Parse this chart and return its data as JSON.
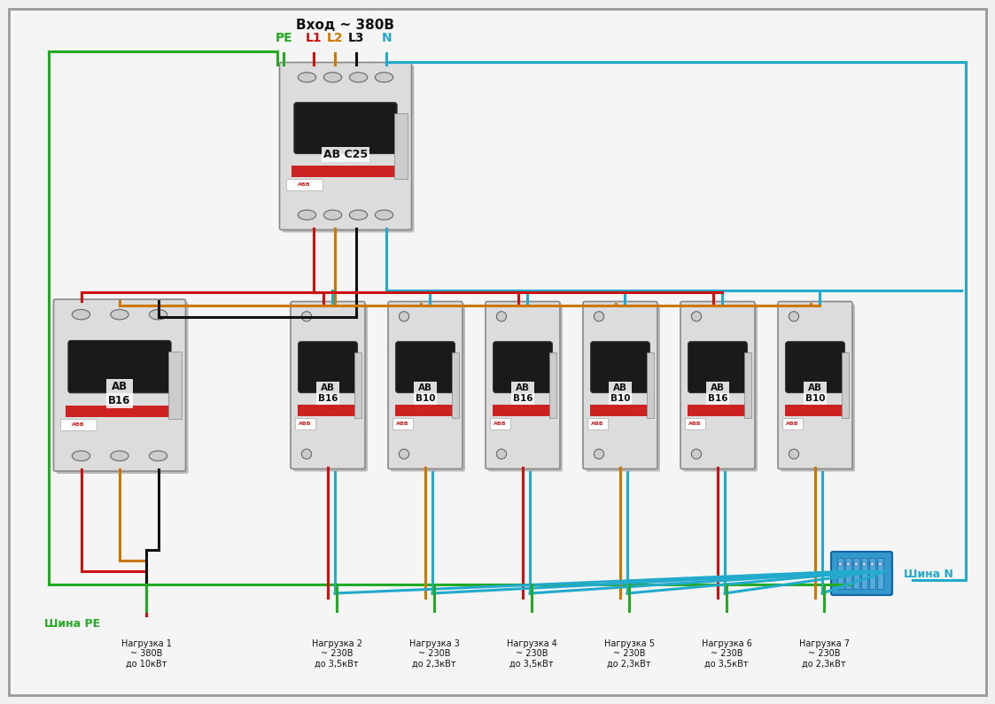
{
  "title": "Вход ~ 380В",
  "bg_color": "#f0f0f0",
  "inner_bg": "#f5f5f5",
  "border_color": "#999999",
  "colors": {
    "green": "#22aa22",
    "red": "#cc1111",
    "orange": "#cc7700",
    "black": "#111111",
    "blue": "#22aacc",
    "breaker_body": "#e0e0e0",
    "breaker_dark": "#222222",
    "abb_red": "#cc2222"
  },
  "title_fontsize": 11,
  "label_fontsize": 8,
  "small_fontsize": 7,
  "wire_lw": 2.2,
  "shina_PE": "Шина РЕ",
  "shina_N": "Шина N",
  "loads": [
    "Нагрузка 1\n~ 380В\nдо 10кВт",
    "Нагрузка 2\n~ 230В\nдо 3,5кВт",
    "Нагрузка 3\n~ 230В\nдо 2,3кВт",
    "Нагрузка 4\n~ 230В\nдо 3,5кВт",
    "Нагрузка 5\n~ 230В\nдо 2,3кВт",
    "Нагрузка 6\n~ 230В\nдо 3,5кВт",
    "Нагрузка 7\n~ 230В\nдо 2,3кВт"
  ],
  "sb_labels": [
    "АВ\nВ16",
    "АВ\nВ10",
    "АВ\nВ16",
    "АВ\nВ10",
    "АВ\nВ16",
    "АВ\nВ10"
  ],
  "term_labels": [
    "PE",
    "L1",
    "L2",
    "L3",
    "N"
  ],
  "term_colors_keys": [
    "green",
    "red",
    "orange",
    "black",
    "blue"
  ]
}
